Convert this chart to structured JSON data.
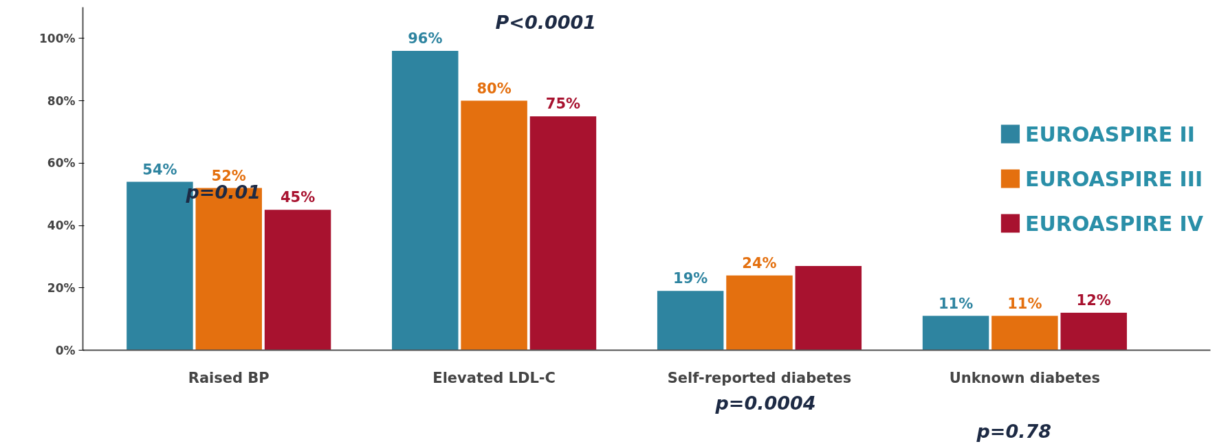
{
  "chart_data": {
    "type": "bar",
    "categories": [
      "Raised BP",
      "Elevated LDL-C",
      "Self-reported diabetes",
      "Unknown diabetes"
    ],
    "series": [
      {
        "name": "EUROASPIRE II",
        "color": "#2e84a0",
        "values": [
          54,
          96,
          19,
          11
        ],
        "value_labels": [
          "54%",
          "96%",
          "19%",
          "11%"
        ]
      },
      {
        "name": "EUROASPIRE III",
        "color": "#e4700f",
        "values": [
          52,
          80,
          24,
          11
        ],
        "value_labels": [
          "52%",
          "80%",
          "24%",
          "11%"
        ]
      },
      {
        "name": "EUROASPIRE IV",
        "color": "#a8122f",
        "values": [
          45,
          75,
          27,
          12
        ],
        "value_labels": [
          "45%",
          "75%",
          null,
          "12%"
        ]
      }
    ],
    "ylim": [
      0,
      110
    ],
    "yticks": [
      {
        "value": 0,
        "label": "0%"
      },
      {
        "value": 20,
        "label": "20%"
      },
      {
        "value": 40,
        "label": "40%"
      },
      {
        "value": 60,
        "label": "60%"
      },
      {
        "value": 80,
        "label": "80%"
      },
      {
        "value": 100,
        "label": "100%"
      }
    ],
    "annotations": [
      "p=0.01",
      "P<0.0001",
      "p=0.0004",
      "p=0.78"
    ],
    "grid": false,
    "legend": "right"
  }
}
